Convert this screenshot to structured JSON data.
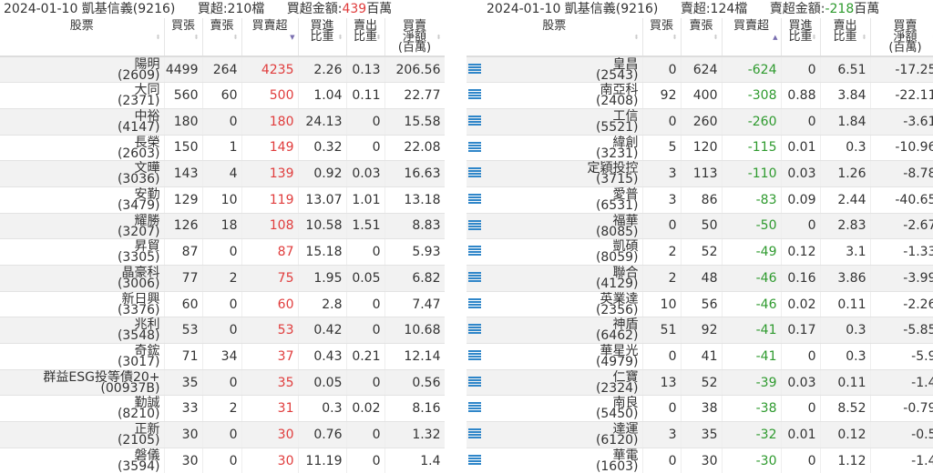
{
  "left": {
    "summary": {
      "date_broker": "2024-01-10 凱基信義(9216)",
      "count_label": "買超:210檔",
      "amount_label": "買超金額:",
      "amount_value": "439",
      "amount_unit": "百萬"
    },
    "headers": [
      "股票",
      "買張",
      "賣張",
      "買賣超",
      "買進\n比重",
      "賣出\n比重",
      "買賣\n淨額\n(百萬)"
    ],
    "sorted_column": "買賣超",
    "sort_direction": "desc",
    "rows": [
      [
        "陽明",
        "(2609)",
        "4499",
        "264",
        "4235",
        "2.26",
        "0.13",
        "206.56"
      ],
      [
        "大同",
        "(2371)",
        "560",
        "60",
        "500",
        "1.04",
        "0.11",
        "22.77"
      ],
      [
        "中裕",
        "(4147)",
        "180",
        "0",
        "180",
        "24.13",
        "0",
        "15.58"
      ],
      [
        "長榮",
        "(2603)",
        "150",
        "1",
        "149",
        "0.32",
        "0",
        "22.08"
      ],
      [
        "文曄",
        "(3036)",
        "143",
        "4",
        "139",
        "0.92",
        "0.03",
        "16.63"
      ],
      [
        "安勤",
        "(3479)",
        "129",
        "10",
        "119",
        "13.07",
        "1.01",
        "13.18"
      ],
      [
        "耀勝",
        "(3207)",
        "126",
        "18",
        "108",
        "10.58",
        "1.51",
        "8.83"
      ],
      [
        "昇貿",
        "(3305)",
        "87",
        "0",
        "87",
        "15.18",
        "0",
        "5.93"
      ],
      [
        "晶豪科",
        "(3006)",
        "77",
        "2",
        "75",
        "1.95",
        "0.05",
        "6.82"
      ],
      [
        "新日興",
        "(3376)",
        "60",
        "0",
        "60",
        "2.8",
        "0",
        "7.47"
      ],
      [
        "兆利",
        "(3548)",
        "53",
        "0",
        "53",
        "0.42",
        "0",
        "10.68"
      ],
      [
        "奇鋐",
        "(3017)",
        "71",
        "34",
        "37",
        "0.43",
        "0.21",
        "12.14"
      ],
      [
        "群益ESG投等債20+",
        "(00937B)",
        "35",
        "0",
        "35",
        "0.05",
        "0",
        "0.56"
      ],
      [
        "勤誠",
        "(8210)",
        "33",
        "2",
        "31",
        "0.3",
        "0.02",
        "8.16"
      ],
      [
        "正新",
        "(2105)",
        "30",
        "0",
        "30",
        "0.76",
        "0",
        "1.32"
      ],
      [
        "磐儀",
        "(3594)",
        "30",
        "0",
        "30",
        "11.19",
        "0",
        "1.4"
      ]
    ]
  },
  "right": {
    "summary": {
      "date_broker": "2024-01-10 凱基信義(9216)",
      "count_label": "賣超:124檔",
      "amount_label": "賣超金額:",
      "amount_value": "-218",
      "amount_unit": "百萬"
    },
    "headers": [
      "股票",
      "買張",
      "賣張",
      "買賣超",
      "買進\n比重",
      "賣出\n比重",
      "買賣\n淨額\n(百萬)"
    ],
    "sorted_column": "買賣超",
    "sort_direction": "asc",
    "row_icon": "list-icon",
    "rows": [
      [
        "皇昌",
        "(2543)",
        "0",
        "624",
        "-624",
        "0",
        "6.51",
        "-17.25"
      ],
      [
        "南亞科",
        "(2408)",
        "92",
        "400",
        "-308",
        "0.88",
        "3.84",
        "-22.11"
      ],
      [
        "工信",
        "(5521)",
        "0",
        "260",
        "-260",
        "0",
        "1.84",
        "-3.61"
      ],
      [
        "緯創",
        "(3231)",
        "5",
        "120",
        "-115",
        "0.01",
        "0.3",
        "-10.96"
      ],
      [
        "定穎投控",
        "(3715)",
        "3",
        "113",
        "-110",
        "0.03",
        "1.26",
        "-8.78"
      ],
      [
        "愛普",
        "(6531)",
        "3",
        "86",
        "-83",
        "0.09",
        "2.44",
        "-40.65"
      ],
      [
        "福華",
        "(8085)",
        "0",
        "50",
        "-50",
        "0",
        "2.83",
        "-2.67"
      ],
      [
        "凱碩",
        "(8059)",
        "2",
        "52",
        "-49",
        "0.12",
        "3.1",
        "-1.33"
      ],
      [
        "聯合",
        "(4129)",
        "2",
        "48",
        "-46",
        "0.16",
        "3.86",
        "-3.99"
      ],
      [
        "英業達",
        "(2356)",
        "10",
        "56",
        "-46",
        "0.02",
        "0.11",
        "-2.26"
      ],
      [
        "神盾",
        "(6462)",
        "51",
        "92",
        "-41",
        "0.17",
        "0.3",
        "-5.85"
      ],
      [
        "華星光",
        "(4979)",
        "0",
        "41",
        "-41",
        "0",
        "0.3",
        "-5.9"
      ],
      [
        "仁寶",
        "(2324)",
        "13",
        "52",
        "-39",
        "0.03",
        "0.11",
        "-1.4"
      ],
      [
        "南良",
        "(5450)",
        "0",
        "38",
        "-38",
        "0",
        "8.52",
        "-0.79"
      ],
      [
        "達運",
        "(6120)",
        "3",
        "35",
        "-32",
        "0.01",
        "0.12",
        "-0.5"
      ],
      [
        "華電",
        "(1603)",
        "0",
        "30",
        "-30",
        "0",
        "1.12",
        "-1.4"
      ]
    ]
  },
  "colors": {
    "positive": "#e03c3c",
    "negative": "#2e9a2e",
    "icon": "#2f86c9"
  }
}
